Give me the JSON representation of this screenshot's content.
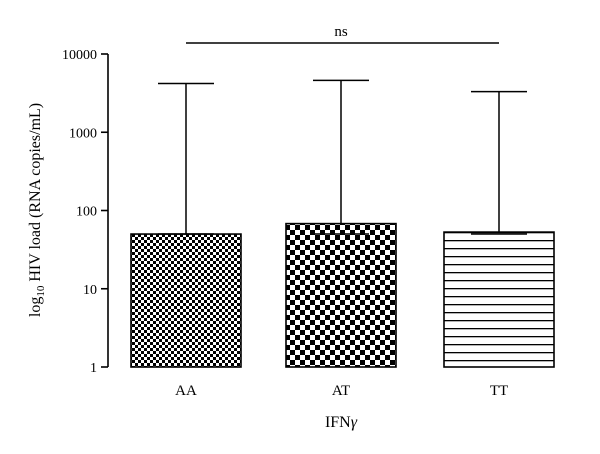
{
  "chart_data": {
    "type": "bar",
    "title": "",
    "xlabel_main": "IFN",
    "xlabel_symbol": "γ",
    "ylabel_prefix": "log",
    "ylabel_sub": "10",
    "ylabel_rest": " HIV load (RNA copies/mL)",
    "yscale": "log",
    "ylim": [
      1,
      10000
    ],
    "yticks": [
      1,
      10,
      100,
      1000,
      10000
    ],
    "ytick_labels": [
      "1",
      "10",
      "100",
      "1000",
      "10000"
    ],
    "categories": [
      "AA",
      "AT",
      "TT"
    ],
    "values": [
      50,
      68,
      53
    ],
    "error_upper": [
      4200,
      4600,
      3300
    ],
    "error_lower": [
      50,
      50,
      50
    ],
    "patterns": [
      "fine-checkerboard",
      "coarse-checkerboard",
      "horizontal-lines"
    ],
    "significance": {
      "label": "ns",
      "from": "AA",
      "to": "TT"
    },
    "grid": false,
    "legend": "none"
  }
}
